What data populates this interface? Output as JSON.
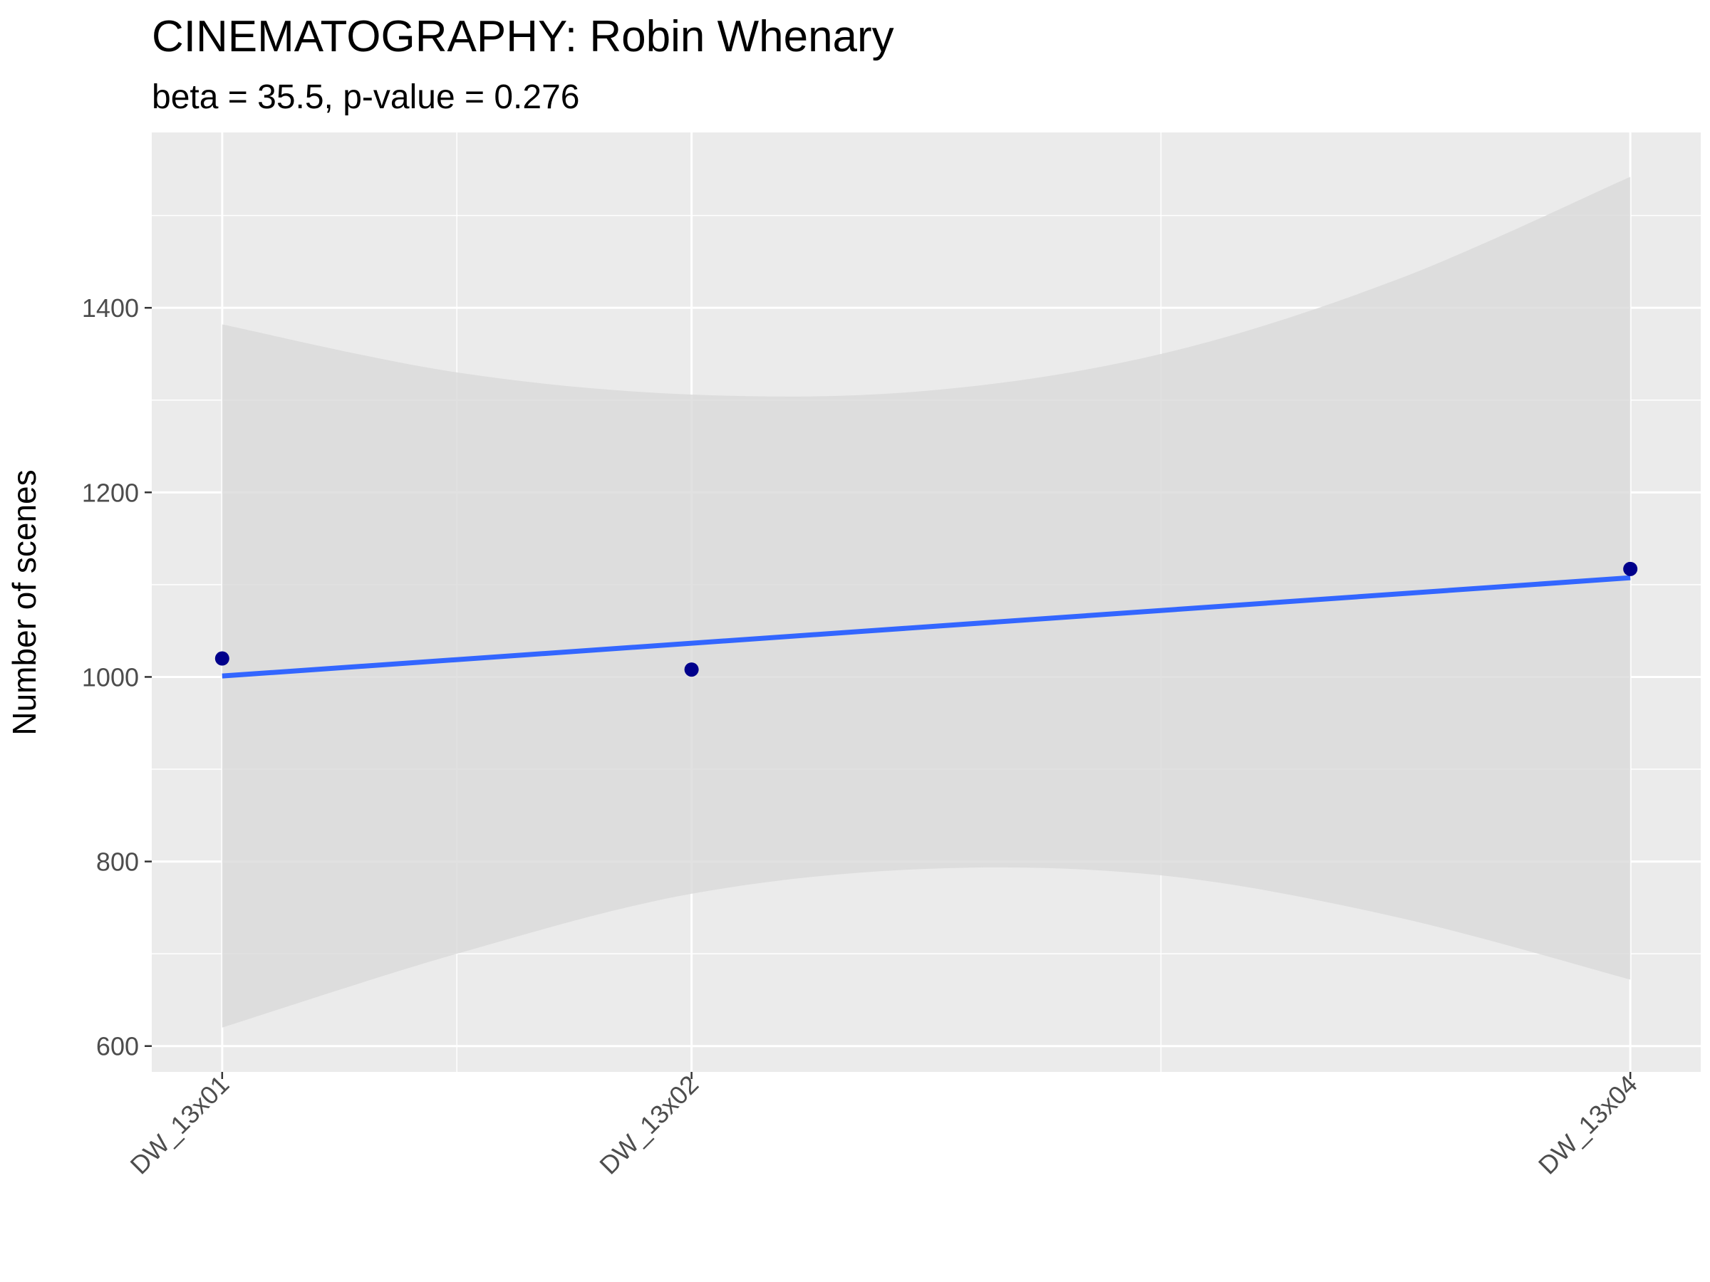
{
  "chart_data": {
    "type": "scatter",
    "title": "CINEMATOGRAPHY: Robin Whenary",
    "subtitle": "beta = 35.5, p-value = 0.276",
    "xlabel": "",
    "ylabel": "Number of scenes",
    "categories": [
      "DW_13x01",
      "DW_13x02",
      "DW_13x04"
    ],
    "x_positions": [
      1,
      2,
      4
    ],
    "x_range": [
      0.85,
      4.15
    ],
    "ylim": [
      572,
      1590
    ],
    "y_ticks": [
      600,
      800,
      1000,
      1200,
      1400
    ],
    "grid": true,
    "points": [
      {
        "x": 1,
        "y": 1020
      },
      {
        "x": 2,
        "y": 1008
      },
      {
        "x": 4,
        "y": 1117
      }
    ],
    "fit_line": {
      "intercept": 965.5,
      "slope": 35.5
    },
    "confidence_band": {
      "x": [
        1,
        1.5,
        2,
        2.5,
        3,
        3.5,
        4
      ],
      "upper": [
        1382,
        1330,
        1306,
        1310,
        1350,
        1430,
        1542
      ],
      "lower": [
        620,
        700,
        765,
        792,
        785,
        740,
        672
      ]
    },
    "colors": {
      "panel": "#ebebeb",
      "grid": "#ffffff",
      "band": "#d9d9d9",
      "line": "#3366ff",
      "point": "#00008b"
    }
  }
}
